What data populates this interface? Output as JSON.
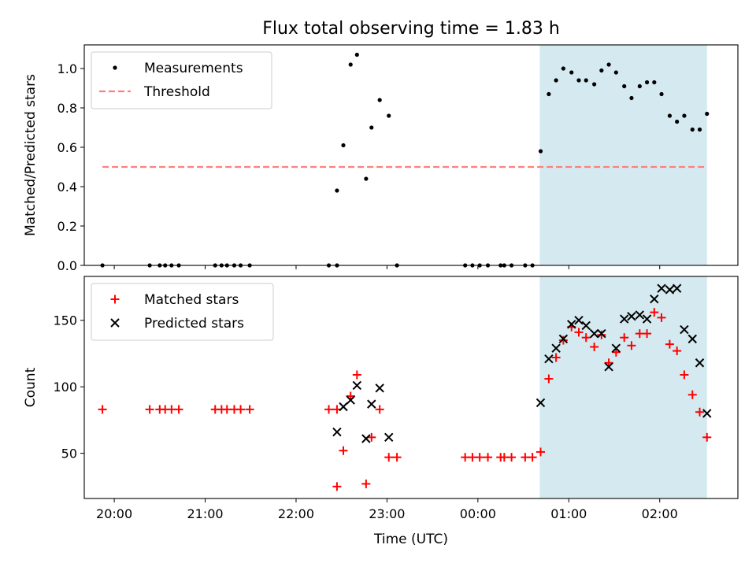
{
  "chart_data": {
    "type": "scatter",
    "title": "Flux total observing time = 1.83 h",
    "xlabel": "Time (UTC)",
    "x_tick_labels": [
      "20:00",
      "21:00",
      "22:00",
      "23:00",
      "00:00",
      "01:00",
      "02:00"
    ],
    "x_ticks_hours": [
      20,
      21,
      22,
      23,
      24,
      25,
      26
    ],
    "xlim_hours": [
      19.67,
      26.86
    ],
    "shaded_region_hours": [
      24.68,
      26.52
    ],
    "shaded_color": "#d4eaf0",
    "panels": [
      {
        "ylabel": "Matched/Predicted stars",
        "ylim": [
          0,
          1.12
        ],
        "y_ticks": [
          0,
          0.2,
          0.4,
          0.6,
          0.8,
          1.0
        ],
        "y_tick_labels": [
          "0.0",
          "0.2",
          "0.4",
          "0.6",
          "0.8",
          "1.0"
        ],
        "legend_position": "upper left",
        "series": [
          {
            "name": "Measurements",
            "marker": "dot",
            "color": "#000000",
            "points": [
              [
                19.87,
                0
              ],
              [
                20.39,
                0
              ],
              [
                20.5,
                0
              ],
              [
                20.56,
                0
              ],
              [
                20.63,
                0
              ],
              [
                20.71,
                0
              ],
              [
                21.11,
                0
              ],
              [
                21.18,
                0
              ],
              [
                21.24,
                0
              ],
              [
                21.32,
                0
              ],
              [
                21.39,
                0
              ],
              [
                21.49,
                0
              ],
              [
                22.36,
                0
              ],
              [
                22.45,
                0
              ],
              [
                22.45,
                0.38
              ],
              [
                22.52,
                0.61
              ],
              [
                22.6,
                1.02
              ],
              [
                22.67,
                1.07
              ],
              [
                22.77,
                0.44
              ],
              [
                22.83,
                0.7
              ],
              [
                22.92,
                0.84
              ],
              [
                23.02,
                0.76
              ],
              [
                23.11,
                0
              ],
              [
                23.86,
                0
              ],
              [
                23.94,
                0
              ],
              [
                24.02,
                0
              ],
              [
                24.11,
                0
              ],
              [
                24.25,
                0
              ],
              [
                24.29,
                0
              ],
              [
                24.37,
                0
              ],
              [
                24.52,
                0
              ],
              [
                24.6,
                0
              ],
              [
                24.69,
                0.58
              ],
              [
                24.78,
                0.87
              ],
              [
                24.86,
                0.94
              ],
              [
                24.94,
                1.0
              ],
              [
                25.03,
                0.98
              ],
              [
                25.11,
                0.94
              ],
              [
                25.19,
                0.94
              ],
              [
                25.28,
                0.92
              ],
              [
                25.36,
                0.99
              ],
              [
                25.44,
                1.02
              ],
              [
                25.52,
                0.98
              ],
              [
                25.61,
                0.91
              ],
              [
                25.69,
                0.85
              ],
              [
                25.78,
                0.91
              ],
              [
                25.86,
                0.93
              ],
              [
                25.94,
                0.93
              ],
              [
                26.02,
                0.87
              ],
              [
                26.11,
                0.76
              ],
              [
                26.19,
                0.73
              ],
              [
                26.27,
                0.76
              ],
              [
                26.36,
                0.69
              ],
              [
                26.44,
                0.69
              ],
              [
                26.52,
                0.77
              ]
            ]
          },
          {
            "name": "Threshold",
            "style": "dashed",
            "color": "#ff7f7f",
            "value": 0.5,
            "x_range_hours": [
              19.87,
              26.52
            ]
          }
        ]
      },
      {
        "ylabel": "Count",
        "ylim": [
          16,
          183
        ],
        "y_ticks": [
          50,
          100,
          150
        ],
        "y_tick_labels": [
          "50",
          "100",
          "150"
        ],
        "legend_position": "upper left",
        "series": [
          {
            "name": "Matched stars",
            "marker": "plus",
            "color": "#ff0000",
            "points": [
              [
                19.87,
                83
              ],
              [
                20.39,
                83
              ],
              [
                20.5,
                83
              ],
              [
                20.56,
                83
              ],
              [
                20.63,
                83
              ],
              [
                20.71,
                83
              ],
              [
                21.11,
                83
              ],
              [
                21.18,
                83
              ],
              [
                21.24,
                83
              ],
              [
                21.32,
                83
              ],
              [
                21.39,
                83
              ],
              [
                21.49,
                83
              ],
              [
                22.36,
                83
              ],
              [
                22.45,
                83
              ],
              [
                22.45,
                25
              ],
              [
                22.52,
                52
              ],
              [
                22.6,
                93
              ],
              [
                22.67,
                109
              ],
              [
                22.77,
                27
              ],
              [
                22.83,
                62
              ],
              [
                22.92,
                83
              ],
              [
                23.02,
                47
              ],
              [
                23.11,
                47
              ],
              [
                23.86,
                47
              ],
              [
                23.94,
                47
              ],
              [
                24.02,
                47
              ],
              [
                24.11,
                47
              ],
              [
                24.25,
                47
              ],
              [
                24.29,
                47
              ],
              [
                24.37,
                47
              ],
              [
                24.52,
                47
              ],
              [
                24.6,
                47
              ],
              [
                24.69,
                51
              ],
              [
                24.78,
                106
              ],
              [
                24.86,
                122
              ],
              [
                24.94,
                135
              ],
              [
                25.03,
                145
              ],
              [
                25.11,
                141
              ],
              [
                25.19,
                137
              ],
              [
                25.28,
                130
              ],
              [
                25.36,
                139
              ],
              [
                25.44,
                118
              ],
              [
                25.52,
                126
              ],
              [
                25.61,
                137
              ],
              [
                25.69,
                131
              ],
              [
                25.78,
                140
              ],
              [
                25.86,
                140
              ],
              [
                25.94,
                156
              ],
              [
                26.02,
                152
              ],
              [
                26.11,
                132
              ],
              [
                26.19,
                127
              ],
              [
                26.27,
                109
              ],
              [
                26.36,
                94
              ],
              [
                26.44,
                81
              ],
              [
                26.52,
                62
              ]
            ]
          },
          {
            "name": "Predicted stars",
            "marker": "x",
            "color": "#000000",
            "points": [
              [
                22.45,
                66
              ],
              [
                22.52,
                85
              ],
              [
                22.6,
                90
              ],
              [
                22.67,
                101
              ],
              [
                22.77,
                61
              ],
              [
                22.83,
                87
              ],
              [
                22.92,
                99
              ],
              [
                23.02,
                62
              ],
              [
                24.69,
                88
              ],
              [
                24.78,
                121
              ],
              [
                24.86,
                129
              ],
              [
                24.94,
                136
              ],
              [
                25.03,
                147
              ],
              [
                25.11,
                150
              ],
              [
                25.19,
                146
              ],
              [
                25.28,
                140
              ],
              [
                25.36,
                140
              ],
              [
                25.44,
                115
              ],
              [
                25.52,
                129
              ],
              [
                25.61,
                151
              ],
              [
                25.69,
                153
              ],
              [
                25.78,
                154
              ],
              [
                25.86,
                151
              ],
              [
                25.94,
                166
              ],
              [
                26.02,
                174
              ],
              [
                26.11,
                173
              ],
              [
                26.19,
                174
              ],
              [
                26.27,
                143
              ],
              [
                26.36,
                136
              ],
              [
                26.44,
                118
              ],
              [
                26.52,
                80
              ]
            ]
          }
        ]
      }
    ]
  }
}
